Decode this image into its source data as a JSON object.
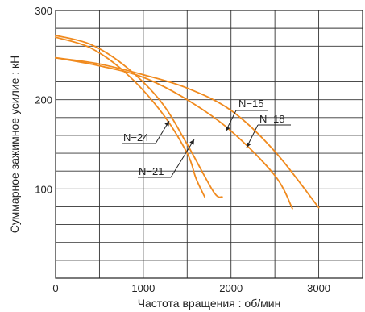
{
  "chart_data": {
    "type": "line",
    "title": "",
    "xlabel": "Частота вращения : об/мин",
    "ylabel": "Суммарное зажимное усилие : кН",
    "xlim": [
      0,
      3500
    ],
    "ylim": [
      0,
      300
    ],
    "grid": true,
    "x_tick_labels": [
      {
        "value": 0,
        "label": "0"
      },
      {
        "value": 1000,
        "label": "1000"
      },
      {
        "value": 2000,
        "label": "2000"
      },
      {
        "value": 3000,
        "label": "3000"
      }
    ],
    "y_tick_labels": [
      {
        "value": 100,
        "label": "100"
      },
      {
        "value": 200,
        "label": "200"
      },
      {
        "value": 300,
        "label": "300"
      }
    ],
    "series": [
      {
        "name": "N−15",
        "points": [
          [
            0,
            247
          ],
          [
            500,
            240
          ],
          [
            1000,
            228
          ],
          [
            1500,
            213
          ],
          [
            2000,
            188
          ],
          [
            2500,
            142
          ],
          [
            3000,
            79
          ]
        ]
      },
      {
        "name": "N−18",
        "points": [
          [
            0,
            247
          ],
          [
            500,
            238
          ],
          [
            1000,
            225
          ],
          [
            1500,
            200
          ],
          [
            2000,
            165
          ],
          [
            2500,
            115
          ],
          [
            2700,
            78
          ]
        ]
      },
      {
        "name": "N−21",
        "points": [
          [
            0,
            272
          ],
          [
            400,
            262
          ],
          [
            800,
            237
          ],
          [
            1200,
            198
          ],
          [
            1500,
            150
          ],
          [
            1800,
            97
          ],
          [
            1900,
            91
          ]
        ]
      },
      {
        "name": "N−24",
        "points": [
          [
            0,
            270
          ],
          [
            400,
            258
          ],
          [
            800,
            230
          ],
          [
            1200,
            187
          ],
          [
            1500,
            140
          ],
          [
            1600,
            112
          ],
          [
            1700,
            91
          ]
        ]
      }
    ],
    "annotations": [
      {
        "label": "N−15",
        "series": "N−15"
      },
      {
        "label": "N−18",
        "series": "N−18"
      },
      {
        "label": "N−21",
        "series": "N−21"
      },
      {
        "label": "N−24",
        "series": "N−24"
      }
    ],
    "line_color": "#F08A1E",
    "grid_color": "#333333",
    "frame_color": "#222222"
  }
}
